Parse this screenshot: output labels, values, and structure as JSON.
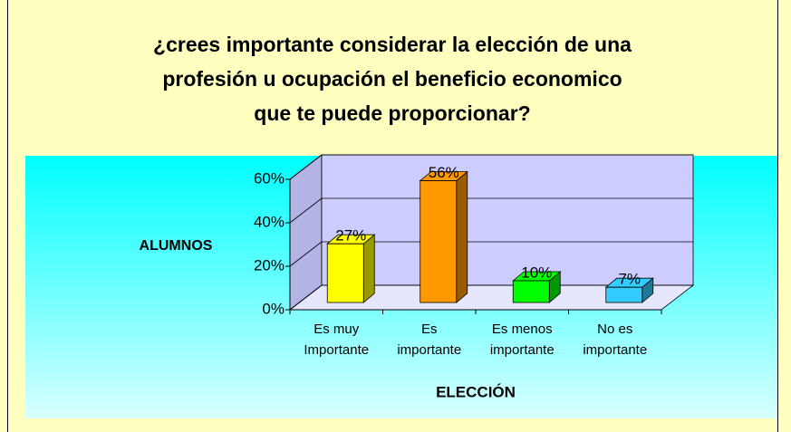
{
  "chart_data": {
    "type": "bar3d",
    "title": "¿crees importante considerar la elección de una\nprofesión u ocupación el beneficio economico\nque te puede proporcionar?",
    "y_label": "ALUMNOS",
    "x_label": "ELECCIÓN",
    "categories": [
      "Es muy\nImportante",
      "Es\nimportante",
      "Es menos\nimportante",
      "No es\nimportante"
    ],
    "values": [
      27,
      56,
      10,
      7
    ],
    "value_labels": [
      "27%",
      "56%",
      "10%",
      "7%"
    ],
    "colors": [
      "#ffff00",
      "#ff9900",
      "#00ff00",
      "#33ccff"
    ],
    "side_colors": [
      "#999900",
      "#995c00",
      "#009900",
      "#1f7a99"
    ],
    "ylim": [
      0,
      60
    ],
    "yticks": [
      {
        "value": 0,
        "label": "0%"
      },
      {
        "value": 20,
        "label": "20%"
      },
      {
        "value": 40,
        "label": "40%"
      },
      {
        "value": 60,
        "label": "60%"
      }
    ],
    "grid": true
  }
}
